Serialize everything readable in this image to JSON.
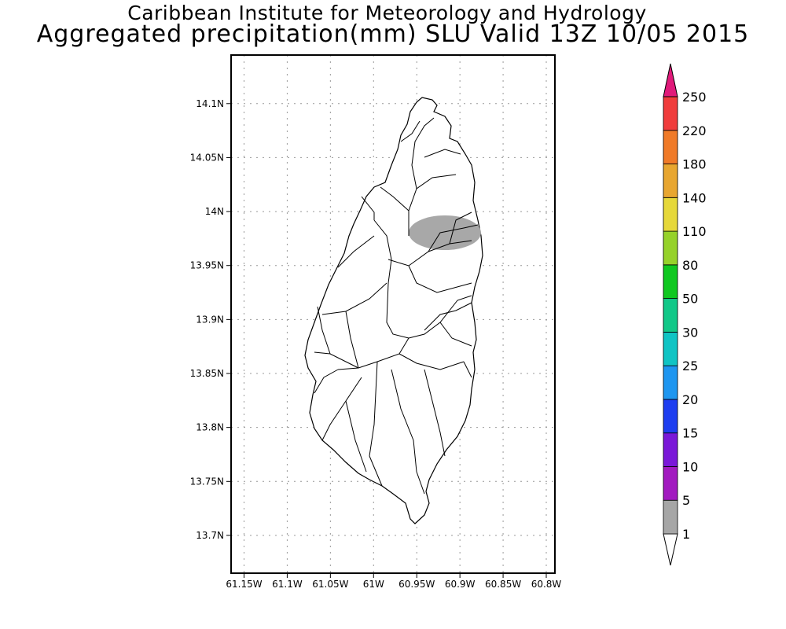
{
  "header": {
    "institute": "Caribbean Institute for Meteorology and Hydrology",
    "product": "Aggregated precipitation(mm) SLU Valid 13Z 10/05 2015"
  },
  "map": {
    "lat_ticks": [
      "14.1N",
      "14.05N",
      "14N",
      "13.95N",
      "13.9N",
      "13.85N",
      "13.8N",
      "13.75N",
      "13.7N"
    ],
    "lon_ticks": [
      "61.15W",
      "61.1W",
      "61.05W",
      "61W",
      "60.95W",
      "60.9W",
      "60.85W",
      "60.8W"
    ],
    "lat_range": [
      13.665,
      14.145
    ],
    "lon_range": [
      -61.165,
      -60.79
    ],
    "grid": true,
    "shaded_area": {
      "category": "1",
      "color": "#a8a8a8"
    }
  },
  "colorbar": {
    "levels": [
      "1",
      "5",
      "10",
      "15",
      "20",
      "25",
      "30",
      "50",
      "80",
      "110",
      "140",
      "180",
      "220",
      "250"
    ],
    "colors": [
      "#a6a6a6",
      "#a21ac0",
      "#7a18d8",
      "#1e3ef0",
      "#1e96f0",
      "#10c4c4",
      "#12c888",
      "#10c820",
      "#96d22a",
      "#e6d83a",
      "#e8a630",
      "#f07a28",
      "#f03c3c",
      "#e01a7a"
    ]
  }
}
